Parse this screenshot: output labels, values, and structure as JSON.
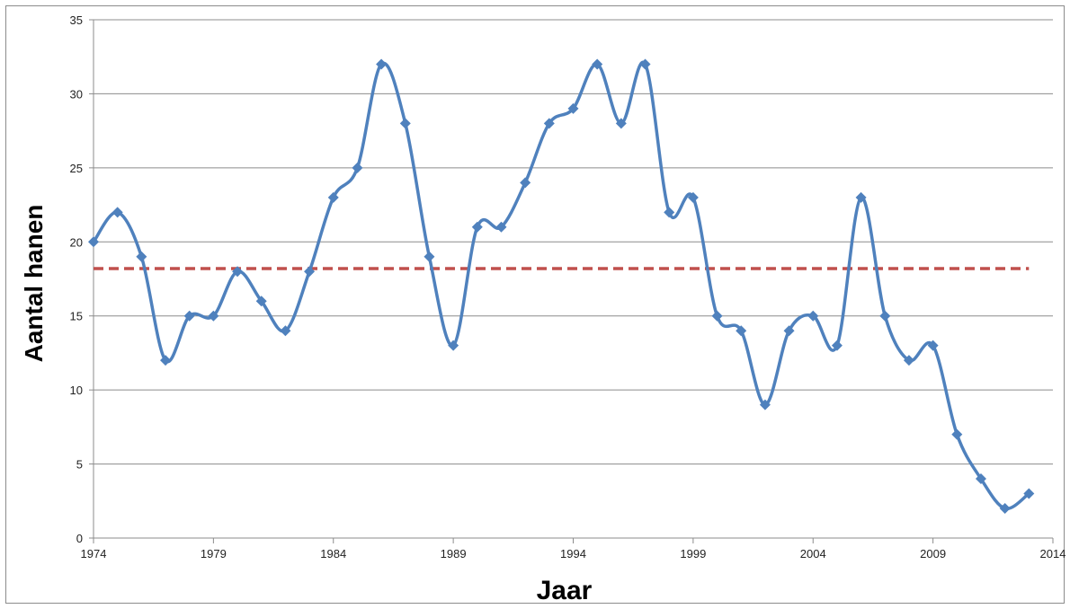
{
  "chart_data": {
    "type": "line",
    "title": "",
    "xlabel": "Jaar",
    "ylabel": "Aantal hanen",
    "xlim": [
      1974,
      2014
    ],
    "ylim": [
      0,
      35
    ],
    "x_ticks": [
      1974,
      1979,
      1984,
      1989,
      1994,
      1999,
      2004,
      2009,
      2014
    ],
    "x_tick_labels": [
      "1974",
      "1979",
      "1984",
      "1989",
      "1994",
      "1999",
      "2004",
      "2009",
      "2014"
    ],
    "y_ticks": [
      0,
      5,
      10,
      15,
      20,
      25,
      30,
      35
    ],
    "y_tick_labels": [
      "0",
      "5",
      "10",
      "15",
      "20",
      "25",
      "30",
      "35"
    ],
    "grid": "horizontal",
    "legend": "none",
    "series": [
      {
        "color": "#4f81bd",
        "marker": "diamond",
        "smooth": true,
        "x": [
          1974,
          1975,
          1976,
          1977,
          1978,
          1979,
          1980,
          1981,
          1982,
          1983,
          1984,
          1985,
          1986,
          1987,
          1988,
          1989,
          1990,
          1991,
          1992,
          1993,
          1994,
          1995,
          1996,
          1997,
          1998,
          1999,
          2000,
          2001,
          2002,
          2003,
          2004,
          2005,
          2006,
          2007,
          2008,
          2009,
          2010,
          2011,
          2012,
          2013
        ],
        "y": [
          20,
          22,
          19,
          12,
          15,
          15,
          18,
          16,
          14,
          18,
          23,
          25,
          32,
          28,
          19,
          13,
          21,
          21,
          24,
          28,
          29,
          32,
          28,
          32,
          22,
          23,
          15,
          14,
          9,
          14,
          15,
          13,
          23,
          15,
          12,
          13,
          7,
          4,
          2,
          3
        ]
      }
    ],
    "reference_line": {
      "y": 18.2,
      "x_range": [
        1974,
        2013
      ],
      "color": "#c0504d",
      "style": "dashed"
    }
  }
}
